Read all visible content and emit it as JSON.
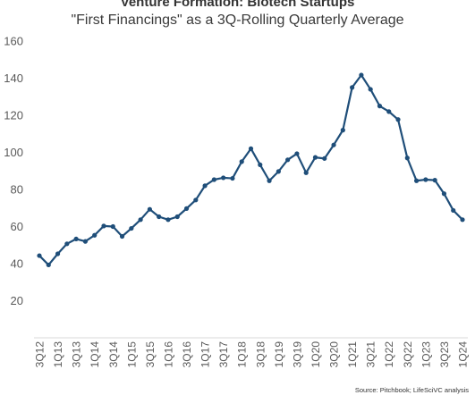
{
  "chart_data": {
    "type": "line",
    "title": "Venture Formation: Biotech Startups",
    "subtitle": "\"First Financings\" as a 3Q-Rolling Quarterly Average",
    "xlabel": "",
    "ylabel": "",
    "ylim": [
      0,
      160
    ],
    "yticks": [
      "20",
      "40",
      "60",
      "80",
      "100",
      "120",
      "140",
      "160"
    ],
    "grid": false,
    "legend": "none",
    "line_color": "#1f4e79",
    "categories": [
      "3Q12",
      "4Q12",
      "1Q13",
      "2Q13",
      "3Q13",
      "4Q13",
      "1Q14",
      "2Q14",
      "3Q14",
      "4Q14",
      "1Q15",
      "2Q15",
      "3Q15",
      "4Q15",
      "1Q16",
      "2Q16",
      "3Q16",
      "4Q16",
      "1Q17",
      "2Q17",
      "3Q17",
      "4Q17",
      "1Q18",
      "2Q18",
      "3Q18",
      "4Q18",
      "1Q19",
      "2Q19",
      "3Q19",
      "4Q19",
      "1Q20",
      "2Q20",
      "3Q20",
      "4Q20",
      "1Q21",
      "2Q21",
      "3Q21",
      "4Q21",
      "1Q22",
      "2Q22",
      "3Q22",
      "4Q22",
      "1Q23",
      "2Q23",
      "3Q23",
      "4Q23",
      "1Q24"
    ],
    "xtick_labels": [
      "3Q12",
      "1Q13",
      "3Q13",
      "1Q14",
      "3Q14",
      "1Q15",
      "3Q15",
      "1Q16",
      "3Q16",
      "1Q17",
      "3Q17",
      "1Q18",
      "3Q18",
      "1Q19",
      "3Q19",
      "1Q20",
      "3Q20",
      "1Q21",
      "3Q21",
      "1Q22",
      "3Q22",
      "1Q23",
      "3Q23",
      "1Q24"
    ],
    "series": [
      {
        "values": [
          44.3,
          39.3,
          45.3,
          50.7,
          53.3,
          52.0,
          55.3,
          60.3,
          60.0,
          54.7,
          59.0,
          63.7,
          69.3,
          65.3,
          63.7,
          65.3,
          69.7,
          74.3,
          82.0,
          85.3,
          86.3,
          86.0,
          95.0,
          102.0,
          93.3,
          84.7,
          89.7,
          96.0,
          99.3,
          89.0,
          97.3,
          96.7,
          104.0,
          112.0,
          135.0,
          141.7,
          134.0,
          125.0,
          122.0,
          117.7,
          97.0,
          84.7,
          85.3,
          85.0,
          77.7,
          68.7,
          63.7
        ]
      }
    ],
    "source": "Source: Pitchbook; LifeSciVC analysis"
  }
}
